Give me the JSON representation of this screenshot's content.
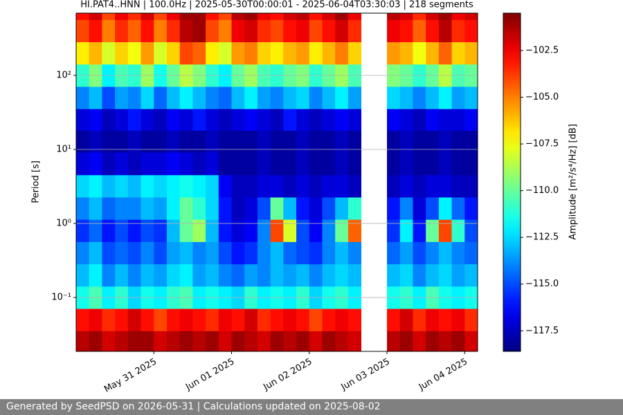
{
  "chart_data": {
    "type": "heatmap",
    "title": "HI.PAT4..HNN | 100.0Hz | 2025-05-30T00:00:01 - 2025-06-04T03:30:03 | 218 segments",
    "y_label": "Period [s]",
    "colorbar_label": "Amplitude [m²/s⁴/Hz] [dB]",
    "colormap": "jet",
    "log_y": true,
    "grid": true,
    "x": [
      "2025-05-30T02:00",
      "2025-05-30T06:00",
      "2025-05-30T10:00",
      "2025-05-30T14:00",
      "2025-05-30T18:00",
      "2025-05-30T22:00",
      "2025-05-31T02:00",
      "2025-05-31T06:00",
      "2025-05-31T10:00",
      "2025-05-31T14:00",
      "2025-05-31T18:00",
      "2025-05-31T22:00",
      "2025-06-01T02:00",
      "2025-06-01T06:00",
      "2025-06-01T10:00",
      "2025-06-01T14:00",
      "2025-06-01T18:00",
      "2025-06-01T22:00",
      "2025-06-02T02:00",
      "2025-06-02T06:00",
      "2025-06-02T10:00",
      "2025-06-02T14:00",
      "2025-06-02T18:00",
      "2025-06-02T22:00",
      "2025-06-03T02:00",
      "2025-06-03T06:00",
      "2025-06-03T10:00",
      "2025-06-03T14:00",
      "2025-06-03T18:00",
      "2025-06-03T22:00",
      "2025-06-04T02:00"
    ],
    "y": [
      0.025,
      0.05,
      0.1,
      0.2,
      0.4,
      0.8,
      1.6,
      3.2,
      6.4,
      13,
      25,
      50,
      100,
      200,
      400,
      800
    ],
    "values": [
      [
        -101.5,
        -101,
        -102,
        -101.5,
        -101,
        -101,
        -102,
        -101.5,
        -101,
        -101.5,
        -101,
        -102,
        -101,
        -101.5,
        -102,
        -101,
        -101.5,
        -101,
        -102,
        -101,
        -101.5,
        -102,
        null,
        null,
        -101.5,
        -101,
        -102,
        -101,
        -101.5,
        -101,
        -102
      ],
      [
        -103,
        -102.5,
        -103.5,
        -103,
        -102,
        -103,
        -104,
        -103,
        -102.5,
        -103,
        -103.5,
        -102.5,
        -103,
        -102,
        -103.5,
        -103,
        -102.5,
        -103,
        -104,
        -103,
        -102.5,
        -103,
        null,
        null,
        -103,
        -102,
        -103.5,
        -102.5,
        -103,
        -102.5,
        -103.5
      ],
      [
        -111.5,
        -110.5,
        -112,
        -111,
        -112.5,
        -111.5,
        -112,
        -111,
        -110.5,
        -112,
        -111.5,
        -112,
        -112.5,
        -111,
        -112,
        -111.5,
        -112,
        -111,
        -112.5,
        -111.5,
        -111,
        -112,
        null,
        null,
        -111.5,
        -111,
        -112,
        -110.5,
        -111.5,
        -112,
        -111.5
      ],
      [
        -113,
        -112,
        -114,
        -113,
        -114,
        -113,
        -113.5,
        -112.5,
        -112,
        -113.5,
        -113,
        -114,
        -114.5,
        -113.5,
        -114,
        -113,
        -113.5,
        -113,
        -114,
        -113,
        -112.5,
        -113,
        null,
        null,
        -113,
        -112.5,
        -114,
        -113,
        -112.5,
        -113.5,
        -113
      ],
      [
        -114,
        -113,
        -115,
        -114.5,
        -115,
        -114,
        -115,
        -113.5,
        -113,
        -114,
        -113.5,
        -115,
        -116,
        -115.5,
        -114,
        -113,
        -114.5,
        -115,
        -115.5,
        -114,
        -113,
        -114,
        null,
        null,
        -114.5,
        -113.5,
        -115,
        -114,
        -113,
        -114,
        -114.5
      ],
      [
        -115.5,
        -114.5,
        -116,
        -115,
        -116,
        -115,
        -115.5,
        -113,
        -110,
        -109,
        -113,
        -116,
        -117,
        -116.5,
        -114,
        -104,
        -108,
        -115,
        -116.5,
        -114,
        -110,
        -104.5,
        null,
        null,
        -115.5,
        -112,
        -116,
        -110,
        -104,
        -111,
        -115
      ],
      [
        -114,
        -113,
        -114.5,
        -114,
        -114,
        -113,
        -113.5,
        -112,
        -110,
        -111,
        -112.5,
        -116,
        -117.5,
        -117,
        -115,
        -110,
        -113,
        -116,
        -117,
        -115,
        -113,
        -111,
        null,
        null,
        -116,
        -114,
        -117,
        -115,
        -112,
        -114.5,
        -116
      ],
      [
        -112.5,
        -112,
        -113,
        -112.5,
        -113,
        -112,
        -112.5,
        -112,
        -111.5,
        -112,
        -112.5,
        -116.5,
        -117.5,
        -117.5,
        -117,
        -117,
        -117.5,
        -117,
        -117.5,
        -117,
        -117,
        -117.5,
        null,
        null,
        -117.5,
        -117,
        -117.5,
        -117,
        -117,
        -117.5,
        -117.5
      ],
      [
        -117,
        -116.5,
        -117.5,
        -117,
        -117.5,
        -117,
        -117,
        -116.5,
        -117,
        -117.5,
        -117,
        -118,
        -118,
        -118,
        -117.5,
        -118,
        -118,
        -117.5,
        -118,
        -118,
        -117.5,
        -118,
        null,
        null,
        -118,
        -117.5,
        -118,
        -118,
        -117.5,
        -118,
        -118
      ],
      [
        -118,
        -117.5,
        -118,
        -118,
        -117.5,
        -118,
        -118,
        -117.5,
        -118,
        -118,
        -117.5,
        -118,
        -118,
        -118,
        -117.5,
        -118,
        -118,
        -117.5,
        -118,
        -118,
        -117.5,
        -118,
        null,
        null,
        -118,
        -117.5,
        -118,
        -118,
        -117.5,
        -118,
        -118
      ],
      [
        -117,
        -116.5,
        -117.5,
        -117,
        -116,
        -117,
        -117.5,
        -116.5,
        -117,
        -116,
        -117,
        -117.5,
        -117,
        -116.5,
        -117,
        -117.5,
        -116,
        -117,
        -117.5,
        -117,
        -116.5,
        -117,
        null,
        null,
        -116.5,
        -117,
        -117.5,
        -116.5,
        -117,
        -117,
        -116.5
      ],
      [
        -114,
        -113,
        -115,
        -113.5,
        -114,
        -112.5,
        -114.5,
        -113,
        -112,
        -113,
        -114,
        -114.5,
        -113,
        -112,
        -113.5,
        -114,
        -113,
        -112.5,
        -114,
        -113,
        -112,
        -113.5,
        null,
        null,
        -112.5,
        -113,
        -114,
        -113,
        -112,
        -113.5,
        -113
      ],
      [
        -111,
        -109.5,
        -112,
        -110.5,
        -111,
        -109,
        -111.5,
        -110,
        -108.5,
        -109.5,
        -111,
        -112,
        -110,
        -109,
        -110.5,
        -111,
        -110,
        -109.5,
        -111,
        -110,
        -109,
        -110.5,
        null,
        null,
        -109.5,
        -110,
        -111,
        -110,
        -108.5,
        -110.5,
        -110
      ],
      [
        -107,
        -106,
        -108,
        -106.5,
        -107.5,
        -105.5,
        -108,
        -106.5,
        -104,
        -104.5,
        -107,
        -108,
        -105.5,
        -105,
        -106.5,
        -107,
        -106,
        -105.5,
        -107,
        -106,
        -105,
        -106.5,
        null,
        null,
        -105.5,
        -106,
        -107.5,
        -106,
        -104.5,
        -106.5,
        -106
      ],
      [
        -104,
        -103,
        -105,
        -103.5,
        -104.5,
        -103,
        -105,
        -103.5,
        -101.5,
        -101,
        -104,
        -105,
        -102.5,
        -102,
        -103.5,
        -104,
        -103,
        -102.5,
        -104,
        -103,
        -102,
        -103.5,
        null,
        null,
        -102.5,
        -103,
        -104.5,
        -103,
        -101.5,
        -103.5,
        -103
      ],
      [
        -103,
        -102,
        -104,
        -102.5,
        -103.5,
        -102,
        -104,
        -102.5,
        -101,
        -101,
        -103,
        -104,
        -101.5,
        -101,
        -102.5,
        -103,
        -102,
        -101.5,
        -103,
        -102,
        -101,
        -102.5,
        null,
        null,
        -101.5,
        -102,
        -103.5,
        -102,
        -101,
        -102.5,
        -102
      ]
    ],
    "xlim": [
      "2025-05-30T00:00",
      "2025-06-04T04:00"
    ],
    "xticks": [
      {
        "value": "2025-05-31T00:00",
        "label": "May 31 2025"
      },
      {
        "value": "2025-06-01T00:00",
        "label": "Jun 01 2025"
      },
      {
        "value": "2025-06-02T00:00",
        "label": "Jun 02 2025"
      },
      {
        "value": "2025-06-03T00:00",
        "label": "Jun 03 2025"
      },
      {
        "value": "2025-06-04T00:00",
        "label": "Jun 04 2025"
      }
    ],
    "ylim": [
      0.0187,
      693
    ],
    "yticks": [
      {
        "value": 0.1,
        "label": "10⁻¹"
      },
      {
        "value": 1,
        "label": "10⁰"
      },
      {
        "value": 10,
        "label": "10¹"
      },
      {
        "value": 100,
        "label": "10²"
      }
    ],
    "zlim": [
      -118.6,
      -100.5
    ],
    "zticks": [
      {
        "value": -117.5,
        "label": "−117.5"
      },
      {
        "value": -115,
        "label": "−115.0"
      },
      {
        "value": -112.5,
        "label": "−112.5"
      },
      {
        "value": -110,
        "label": "−110.0"
      },
      {
        "value": -107.5,
        "label": "−107.5"
      },
      {
        "value": -105,
        "label": "−105.0"
      },
      {
        "value": -102.5,
        "label": "−102.5"
      }
    ]
  },
  "footer": "Generated by SeedPSD on 2026-05-31 | Calculations updated on 2025-08-02"
}
